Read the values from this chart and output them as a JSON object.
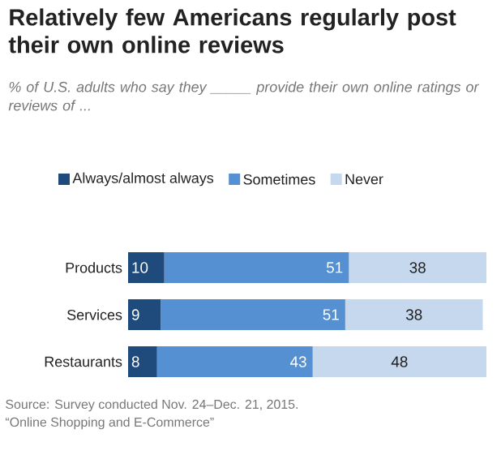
{
  "chart_data": {
    "type": "bar",
    "orientation": "horizontal",
    "stacked": true,
    "data_labels": true,
    "legend": "top",
    "title": "Relatively few Americans regularly post their own online reviews",
    "subtitle": "% of U.S. adults who say they _____ provide their own online ratings or reviews of ...",
    "categories": [
      "Products",
      "Services",
      "Restaurants"
    ],
    "series": [
      {
        "name": "Always/almost always",
        "color": "#1f4a7c",
        "values": [
          10,
          9,
          8
        ]
      },
      {
        "name": "Sometimes",
        "color": "#5590d2",
        "values": [
          51,
          51,
          43
        ]
      },
      {
        "name": "Never",
        "color": "#c6d8ee",
        "values": [
          38,
          38,
          48
        ]
      }
    ],
    "annotations": [
      "Source: Survey conducted Nov. 24–Dec. 21, 2015.",
      "“Online Shopping and E-Commerce”"
    ]
  }
}
